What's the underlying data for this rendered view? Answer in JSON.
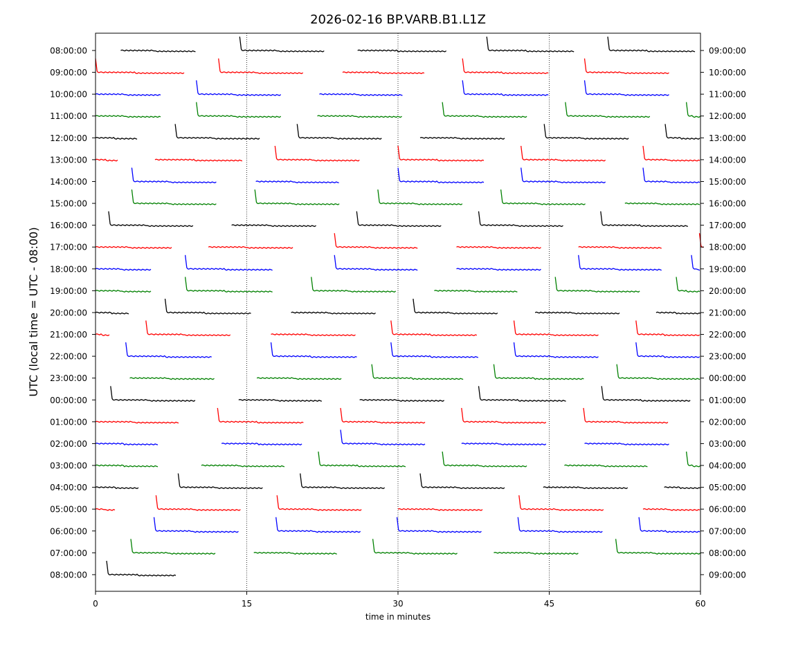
{
  "chart_data": {
    "type": "line",
    "title": "2026-02-16 BP.VARB.B1.L1Z",
    "xlabel": "time in minutes",
    "ylabel": "UTC (local time = UTC - 08:00)",
    "xlim": [
      0,
      60
    ],
    "x_ticks": [
      0,
      15,
      30,
      45,
      60
    ],
    "x_tick_labels": [
      "0",
      "15",
      "30",
      "45",
      "60"
    ],
    "vertical_gridlines": [
      15,
      30,
      45
    ],
    "left_tick_labels": [
      "08:00:00",
      "09:00:00",
      "10:00:00",
      "11:00:00",
      "12:00:00",
      "13:00:00",
      "14:00:00",
      "15:00:00",
      "16:00:00",
      "17:00:00",
      "18:00:00",
      "19:00:00",
      "20:00:00",
      "21:00:00",
      "22:00:00",
      "23:00:00",
      "00:00:00",
      "01:00:00",
      "02:00:00",
      "03:00:00",
      "04:00:00",
      "05:00:00",
      "06:00:00",
      "07:00:00",
      "08:00:00"
    ],
    "right_tick_labels": [
      "09:00:00",
      "10:00:00",
      "11:00:00",
      "12:00:00",
      "13:00:00",
      "14:00:00",
      "15:00:00",
      "16:00:00",
      "17:00:00",
      "18:00:00",
      "19:00:00",
      "20:00:00",
      "21:00:00",
      "22:00:00",
      "23:00:00",
      "00:00:00",
      "01:00:00",
      "02:00:00",
      "03:00:00",
      "04:00:00",
      "05:00:00",
      "06:00:00",
      "07:00:00",
      "08:00:00",
      "09:00:00"
    ],
    "trace_colors": [
      "#000000",
      "#ff0000",
      "#0000ff",
      "#008000"
    ],
    "traces": [
      {
        "row": 0,
        "spikes": [
          14.3,
          38.8,
          50.8
        ],
        "segments": [
          [
            2.5,
            10.0
          ],
          [
            14.3,
            22.8
          ],
          [
            26.0,
            34.8
          ],
          [
            38.8,
            47.5
          ],
          [
            50.8,
            59.5
          ]
        ]
      },
      {
        "row": 1,
        "spikes": [
          0.0,
          12.2,
          36.4,
          48.5
        ],
        "segments": [
          [
            0.0,
            8.8
          ],
          [
            12.2,
            20.7
          ],
          [
            24.5,
            32.7
          ],
          [
            36.4,
            45.0
          ],
          [
            48.5,
            57.0
          ]
        ]
      },
      {
        "row": 2,
        "spikes": [
          10.0,
          36.4,
          48.5
        ],
        "segments": [
          [
            0.0,
            6.5
          ],
          [
            10.0,
            18.5
          ],
          [
            22.2,
            30.5
          ],
          [
            36.4,
            45.0
          ],
          [
            48.5,
            57.0
          ]
        ]
      },
      {
        "row": 3,
        "spikes": [
          10.0,
          34.4,
          46.6,
          58.6
        ],
        "segments": [
          [
            0.0,
            6.5
          ],
          [
            10.0,
            18.5
          ],
          [
            22.0,
            30.5
          ],
          [
            34.4,
            42.8
          ],
          [
            46.6,
            55.0
          ],
          [
            58.6,
            60.0
          ]
        ]
      },
      {
        "row": 4,
        "spikes": [
          7.9,
          20.0,
          44.5,
          56.5
        ],
        "segments": [
          [
            0.0,
            4.2
          ],
          [
            7.9,
            16.4
          ],
          [
            20.0,
            28.4
          ],
          [
            32.2,
            40.7
          ],
          [
            44.5,
            53.0
          ],
          [
            56.5,
            60.0
          ]
        ]
      },
      {
        "row": 5,
        "spikes": [
          17.8,
          30.0,
          42.2,
          54.3
        ],
        "segments": [
          [
            0.0,
            2.2
          ],
          [
            5.9,
            14.6
          ],
          [
            17.8,
            26.3
          ],
          [
            30.0,
            38.6
          ],
          [
            42.2,
            50.7
          ],
          [
            54.3,
            60.0
          ]
        ]
      },
      {
        "row": 6,
        "spikes": [
          3.6,
          30.0,
          42.2,
          54.3
        ],
        "segments": [
          [
            0.0,
            0.1
          ],
          [
            3.6,
            12.0
          ],
          [
            15.9,
            24.2
          ],
          [
            30.0,
            38.6
          ],
          [
            42.2,
            50.7
          ],
          [
            54.3,
            60.0
          ]
        ]
      },
      {
        "row": 7,
        "spikes": [
          3.6,
          15.8,
          28.0,
          40.2
        ],
        "segments": [
          [
            0.0,
            0.1
          ],
          [
            3.6,
            12.0
          ],
          [
            15.8,
            24.2
          ],
          [
            28.0,
            36.5
          ],
          [
            40.2,
            48.7
          ],
          [
            52.5,
            60.0
          ]
        ]
      },
      {
        "row": 8,
        "spikes": [
          1.3,
          25.9,
          38.0,
          50.1
        ],
        "segments": [
          [
            1.3,
            9.8
          ],
          [
            13.5,
            22.0
          ],
          [
            25.9,
            34.3
          ],
          [
            38.0,
            46.5
          ],
          [
            50.1,
            58.8
          ]
        ]
      },
      {
        "row": 9,
        "spikes": [
          23.7,
          59.9
        ],
        "segments": [
          [
            0.0,
            7.6
          ],
          [
            11.2,
            19.6
          ],
          [
            23.7,
            32.0
          ],
          [
            35.8,
            44.2
          ],
          [
            47.9,
            56.2
          ],
          [
            59.9,
            60.0
          ]
        ]
      },
      {
        "row": 10,
        "spikes": [
          8.9,
          23.7,
          47.9,
          59.1
        ],
        "segments": [
          [
            0.0,
            5.5
          ],
          [
            8.9,
            17.6
          ],
          [
            23.7,
            32.0
          ],
          [
            35.8,
            44.2
          ],
          [
            47.9,
            56.2
          ],
          [
            59.1,
            60.0
          ]
        ]
      },
      {
        "row": 11,
        "spikes": [
          8.9,
          21.4,
          45.6,
          57.6
        ],
        "segments": [
          [
            0.0,
            5.5
          ],
          [
            8.9,
            17.6
          ],
          [
            21.4,
            29.8
          ],
          [
            33.6,
            41.9
          ],
          [
            45.6,
            54.0
          ],
          [
            57.6,
            60.0
          ]
        ]
      },
      {
        "row": 12,
        "spikes": [
          6.9,
          31.5
        ],
        "segments": [
          [
            0.0,
            3.4
          ],
          [
            6.9,
            15.5
          ],
          [
            19.4,
            27.9
          ],
          [
            31.5,
            40.0
          ],
          [
            43.6,
            52.0
          ],
          [
            55.6,
            60.0
          ]
        ]
      },
      {
        "row": 13,
        "spikes": [
          5.0,
          29.3,
          41.5,
          53.6
        ],
        "segments": [
          [
            0.0,
            1.5
          ],
          [
            5.0,
            13.4
          ],
          [
            17.4,
            25.8
          ],
          [
            29.3,
            37.9
          ],
          [
            41.5,
            50.0
          ],
          [
            53.6,
            60.0
          ]
        ]
      },
      {
        "row": 14,
        "spikes": [
          3.0,
          17.4,
          29.3,
          41.5,
          53.6
        ],
        "segments": [
          [
            3.0,
            11.6
          ],
          [
            17.4,
            26.0
          ],
          [
            29.3,
            38.0
          ],
          [
            41.5,
            50.0
          ],
          [
            53.6,
            60.0
          ]
        ]
      },
      {
        "row": 15,
        "spikes": [
          27.4,
          39.5,
          51.7
        ],
        "segments": [
          [
            3.4,
            11.8
          ],
          [
            16.0,
            24.4
          ],
          [
            27.4,
            36.5
          ],
          [
            39.5,
            48.5
          ],
          [
            51.7,
            60.0
          ]
        ]
      },
      {
        "row": 16,
        "spikes": [
          1.5,
          38.0,
          50.2
        ],
        "segments": [
          [
            1.5,
            10.0
          ],
          [
            14.2,
            22.5
          ],
          [
            26.2,
            34.6
          ],
          [
            38.0,
            46.7
          ],
          [
            50.2,
            59.0
          ]
        ]
      },
      {
        "row": 17,
        "spikes": [
          12.1,
          24.3,
          36.3,
          48.4
        ],
        "segments": [
          [
            0.0,
            8.3
          ],
          [
            12.1,
            20.7
          ],
          [
            24.3,
            32.7
          ],
          [
            36.3,
            44.8
          ],
          [
            48.4,
            56.8
          ]
        ]
      },
      {
        "row": 18,
        "spikes": [
          24.3
        ],
        "segments": [
          [
            0.0,
            6.3
          ],
          [
            12.5,
            20.6
          ],
          [
            24.3,
            32.8
          ],
          [
            36.3,
            44.8
          ],
          [
            48.5,
            57.0
          ]
        ]
      },
      {
        "row": 19,
        "spikes": [
          22.1,
          34.4,
          58.6
        ],
        "segments": [
          [
            0.0,
            6.3
          ],
          [
            10.5,
            18.8
          ],
          [
            22.1,
            30.8
          ],
          [
            34.4,
            42.8
          ],
          [
            46.5,
            54.8
          ],
          [
            58.6,
            60.0
          ]
        ]
      },
      {
        "row": 20,
        "spikes": [
          8.2,
          20.3,
          32.2
        ],
        "segments": [
          [
            0.0,
            4.3
          ],
          [
            8.2,
            16.7
          ],
          [
            20.3,
            28.7
          ],
          [
            32.2,
            40.6
          ],
          [
            44.4,
            52.8
          ],
          [
            56.4,
            60.0
          ]
        ]
      },
      {
        "row": 21,
        "spikes": [
          6.0,
          18.0,
          42.0
        ],
        "segments": [
          [
            0.0,
            2.0
          ],
          [
            6.0,
            14.5
          ],
          [
            18.0,
            26.5
          ],
          [
            30.0,
            38.5
          ],
          [
            42.0,
            50.5
          ],
          [
            54.3,
            60.0
          ]
        ]
      },
      {
        "row": 22,
        "spikes": [
          5.8,
          17.9,
          29.9,
          41.9,
          53.9
        ],
        "segments": [
          [
            5.8,
            14.3
          ],
          [
            17.9,
            26.3
          ],
          [
            29.9,
            38.3
          ],
          [
            41.9,
            50.3
          ],
          [
            53.9,
            60.0
          ]
        ]
      },
      {
        "row": 23,
        "spikes": [
          3.5,
          27.5,
          51.6
        ],
        "segments": [
          [
            3.5,
            12.0
          ],
          [
            15.7,
            24.0
          ],
          [
            27.5,
            36.0
          ],
          [
            39.5,
            48.0
          ],
          [
            51.6,
            60.0
          ]
        ]
      },
      {
        "row": 24,
        "spikes": [
          1.1
        ],
        "segments": [
          [
            1.1,
            8.1
          ]
        ]
      }
    ]
  }
}
